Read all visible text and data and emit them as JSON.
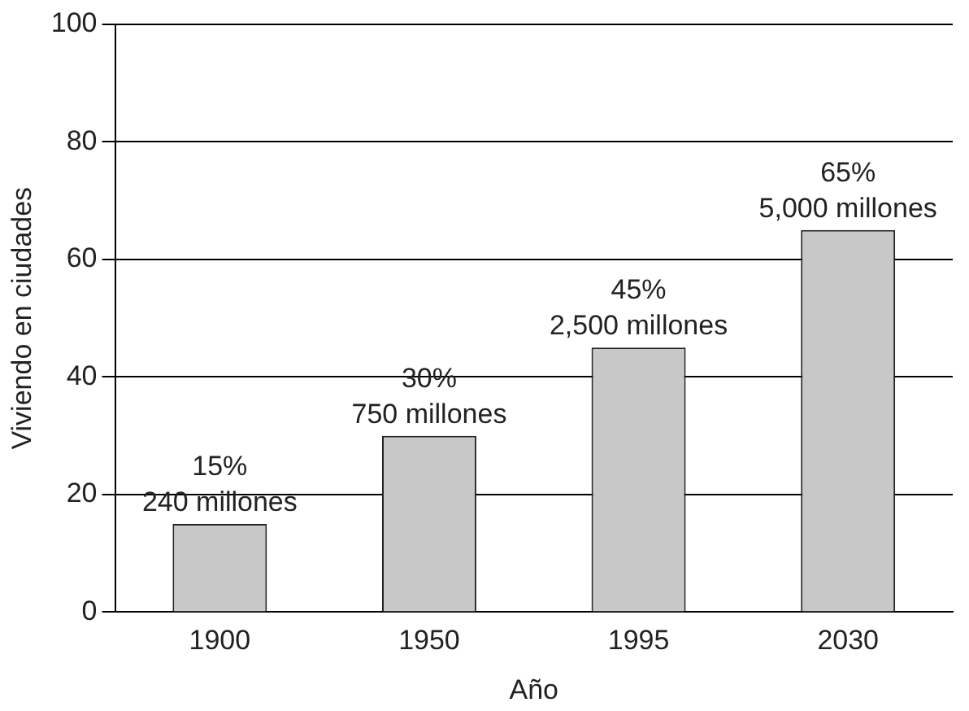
{
  "chart_data": {
    "type": "bar",
    "xlabel": "Año",
    "ylabel": "Viviendo en ciudades",
    "categories": [
      "1900",
      "1950",
      "1995",
      "2030"
    ],
    "values": [
      15,
      30,
      45,
      65
    ],
    "color": "#c8c8c8",
    "value_labels": [
      "15%",
      "30%",
      "45%",
      "65%"
    ],
    "annotations": [
      {
        "text": "240 millones",
        "x": "1900",
        "y": 15
      },
      {
        "text": "750 millones",
        "x": "1950",
        "y": 30
      },
      {
        "text": "2,500 millones",
        "x": "1995",
        "y": 45
      },
      {
        "text": "5,000 millones",
        "x": "2030",
        "y": 65
      }
    ],
    "ylim": [
      0,
      100
    ],
    "yticks": [
      0,
      20,
      40,
      60,
      80,
      100
    ],
    "grid": "y",
    "legend": false
  }
}
